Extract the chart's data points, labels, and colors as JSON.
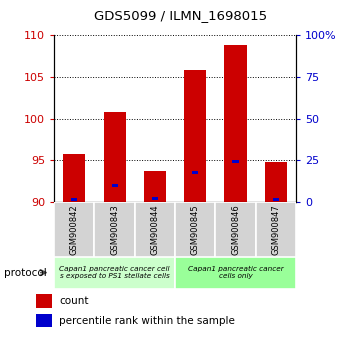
{
  "title": "GDS5099 / ILMN_1698015",
  "samples": [
    "GSM900842",
    "GSM900843",
    "GSM900844",
    "GSM900845",
    "GSM900846",
    "GSM900847"
  ],
  "red_values": [
    95.7,
    100.8,
    93.7,
    105.8,
    108.8,
    94.8
  ],
  "blue_values": [
    90.3,
    92.0,
    90.4,
    93.5,
    94.8,
    90.3
  ],
  "baseline": 90,
  "ylim_left": [
    90,
    110
  ],
  "yticks_left": [
    90,
    95,
    100,
    105,
    110
  ],
  "ylim_right": [
    0,
    100
  ],
  "yticks_right": [
    0,
    25,
    50,
    75,
    100
  ],
  "ytick_labels_right": [
    "0",
    "25",
    "50",
    "75",
    "100%"
  ],
  "red_color": "#cc0000",
  "blue_color": "#0000cc",
  "bar_width": 0.55,
  "group1_label": "Capan1 pancreatic cancer cell\ns exposed to PS1 stellate cells",
  "group2_label": "Capan1 pancreatic cancer\ncells only",
  "group1_indices": [
    0,
    1,
    2
  ],
  "group2_indices": [
    3,
    4,
    5
  ],
  "group1_color": "#ccffcc",
  "group2_color": "#99ff99",
  "protocol_label": "protocol",
  "legend_count": "count",
  "legend_percentile": "percentile rank within the sample",
  "left_tick_color": "#cc0000",
  "right_tick_color": "#0000cc",
  "bg_color": "#ffffff"
}
